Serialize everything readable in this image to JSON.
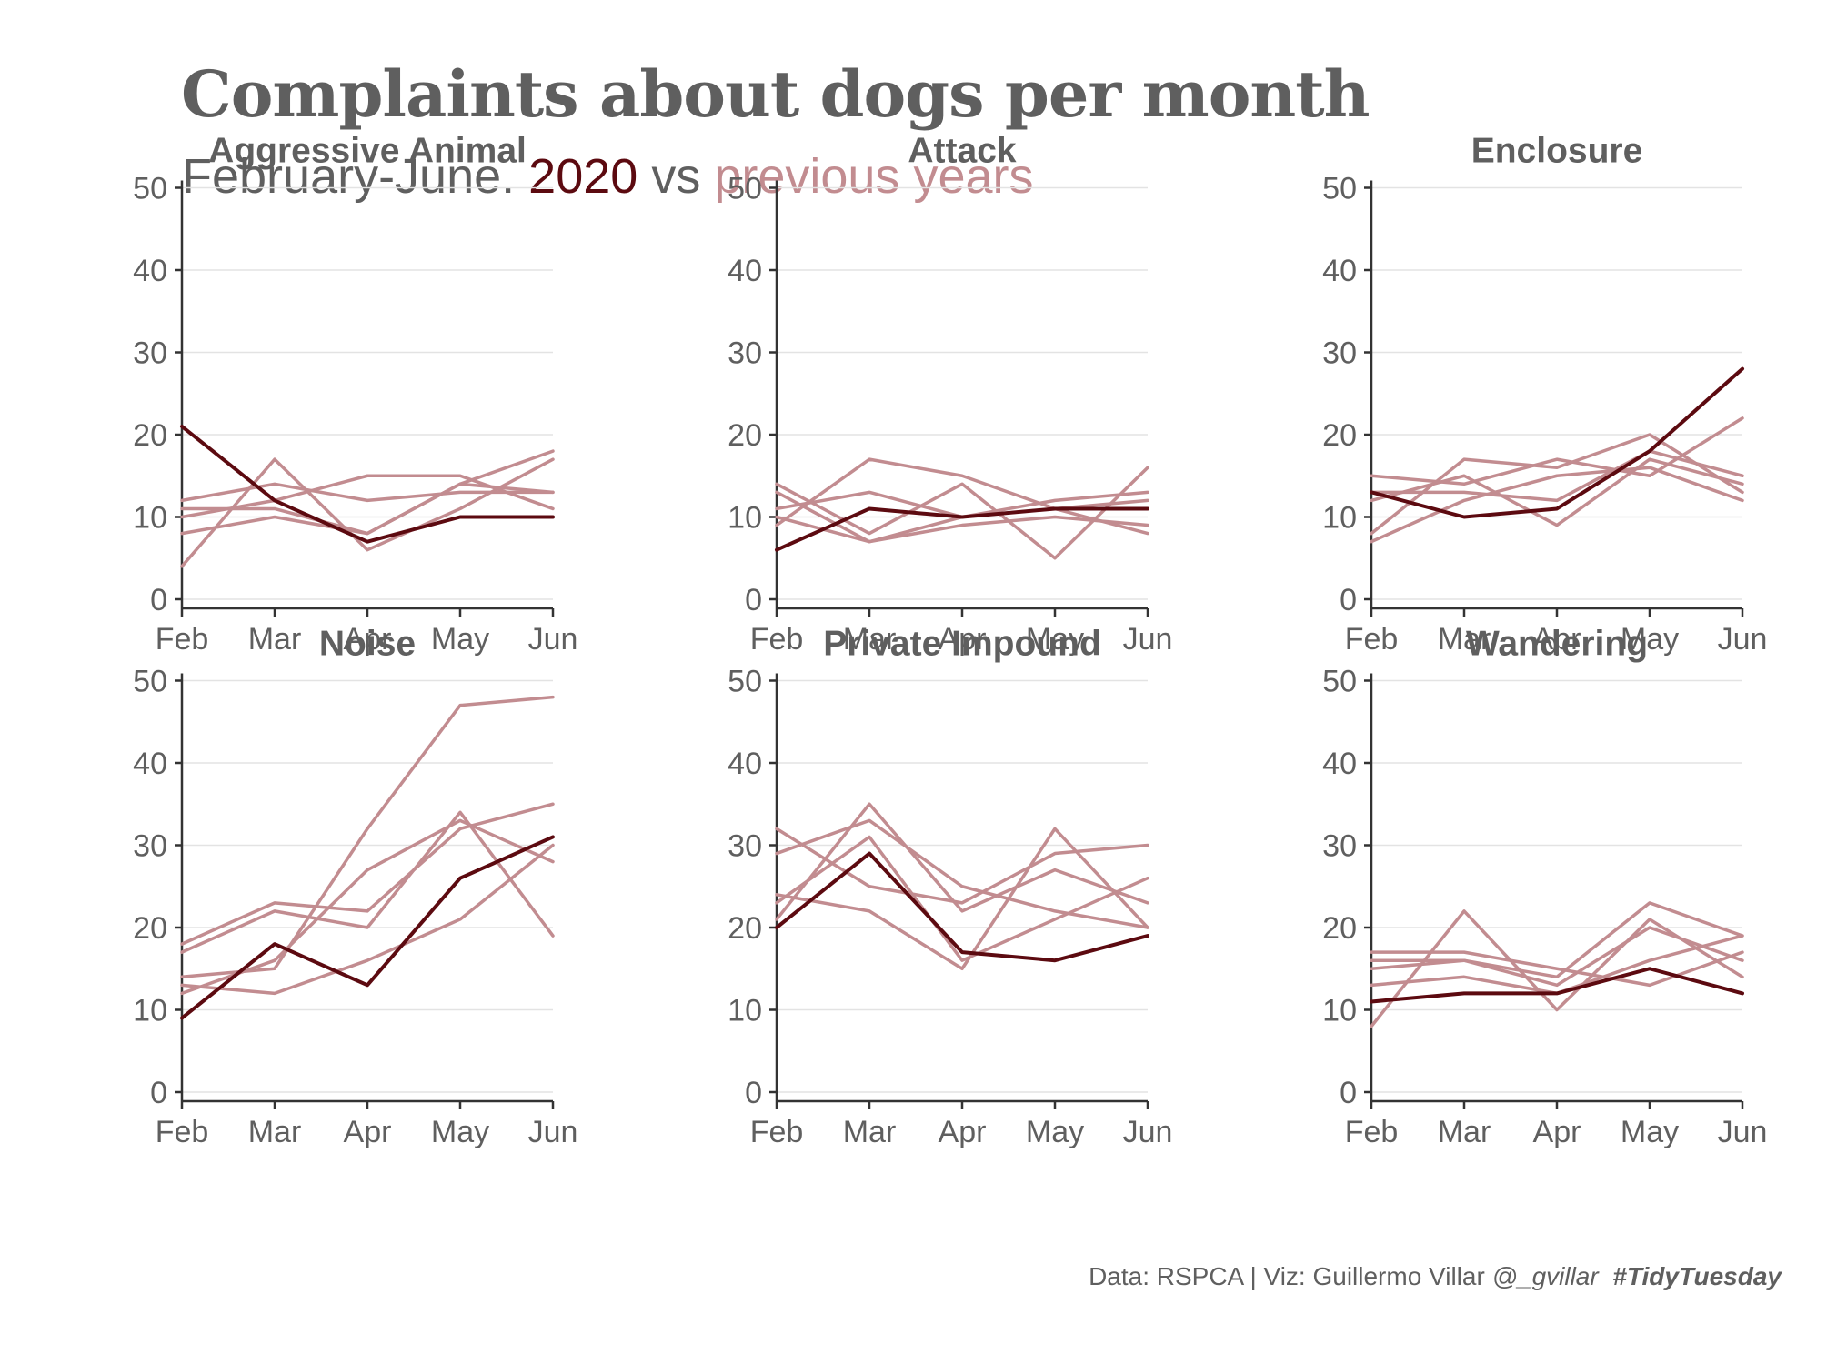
{
  "title": "Complaints about dogs per month",
  "subtitle": {
    "lead": "February-June. ",
    "current": "2020",
    "mid": " vs ",
    "previous": "previous years"
  },
  "caption": {
    "text": "Data: RSPCA | Viz: Guillermo Villar ",
    "handle": "@_gvillar",
    "tag": "#TidyTuesday"
  },
  "colors": {
    "text": "#5f5f5f",
    "current": "#5c0a10",
    "previous": "#c28c90",
    "grid": "#e3e3e3"
  },
  "chart_data": [
    {
      "type": "line",
      "title": "Aggressive Animal",
      "x": [
        "Feb",
        "Mar",
        "Apr",
        "May",
        "Jun"
      ],
      "ylim": [
        0,
        50
      ],
      "yticks": [
        0,
        10,
        20,
        30,
        40,
        50
      ],
      "previous_years": [
        [
          12,
          14,
          12,
          13,
          13
        ],
        [
          10,
          12,
          15,
          15,
          11
        ],
        [
          8,
          10,
          8,
          14,
          18
        ],
        [
          4,
          17,
          6,
          11,
          17
        ],
        [
          11,
          11,
          8,
          14,
          13
        ]
      ],
      "current": [
        21,
        12,
        7,
        10,
        10
      ]
    },
    {
      "type": "line",
      "title": "Attack",
      "x": [
        "Feb",
        "Mar",
        "Apr",
        "May",
        "Jun"
      ],
      "ylim": [
        0,
        50
      ],
      "yticks": [
        0,
        10,
        20,
        30,
        40,
        50
      ],
      "previous_years": [
        [
          9,
          17,
          15,
          11,
          12
        ],
        [
          14,
          8,
          14,
          5,
          16
        ],
        [
          11,
          13,
          10,
          11,
          8
        ],
        [
          10,
          7,
          9,
          10,
          9
        ],
        [
          13,
          7,
          10,
          12,
          13
        ]
      ],
      "current": [
        6,
        11,
        10,
        11,
        11
      ]
    },
    {
      "type": "line",
      "title": "Enclosure",
      "x": [
        "Feb",
        "Mar",
        "Apr",
        "May",
        "Jun"
      ],
      "ylim": [
        0,
        50
      ],
      "yticks": [
        0,
        10,
        20,
        30,
        40,
        50
      ],
      "previous_years": [
        [
          15,
          14,
          17,
          15,
          22
        ],
        [
          8,
          17,
          16,
          20,
          13
        ],
        [
          7,
          12,
          15,
          16,
          12
        ],
        [
          12,
          15,
          9,
          17,
          14
        ],
        [
          13,
          13,
          12,
          18,
          15
        ]
      ],
      "current": [
        13,
        10,
        11,
        18,
        28
      ]
    },
    {
      "type": "line",
      "title": "Noise",
      "x": [
        "Feb",
        "Mar",
        "Apr",
        "May",
        "Jun"
      ],
      "ylim": [
        0,
        50
      ],
      "yticks": [
        0,
        10,
        20,
        30,
        40,
        50
      ],
      "previous_years": [
        [
          14,
          15,
          32,
          47,
          48
        ],
        [
          18,
          23,
          22,
          32,
          35
        ],
        [
          17,
          22,
          20,
          34,
          19
        ],
        [
          13,
          12,
          16,
          21,
          30
        ],
        [
          12,
          16,
          27,
          33,
          28
        ]
      ],
      "current": [
        9,
        18,
        13,
        26,
        31
      ]
    },
    {
      "type": "line",
      "title": "Private Impound",
      "x": [
        "Feb",
        "Mar",
        "Apr",
        "May",
        "Jun"
      ],
      "ylim": [
        0,
        50
      ],
      "yticks": [
        0,
        10,
        20,
        30,
        40,
        50
      ],
      "previous_years": [
        [
          32,
          25,
          23,
          29,
          30
        ],
        [
          24,
          22,
          15,
          32,
          20
        ],
        [
          21,
          35,
          22,
          27,
          23
        ],
        [
          29,
          33,
          25,
          22,
          20
        ],
        [
          23,
          31,
          16,
          21,
          26
        ]
      ],
      "current": [
        20,
        29,
        17,
        16,
        19
      ]
    },
    {
      "type": "line",
      "title": "Wandering",
      "x": [
        "Feb",
        "Mar",
        "Apr",
        "May",
        "Jun"
      ],
      "ylim": [
        0,
        50
      ],
      "yticks": [
        0,
        10,
        20,
        30,
        40,
        50
      ],
      "previous_years": [
        [
          17,
          17,
          15,
          13,
          17
        ],
        [
          8,
          22,
          10,
          21,
          14
        ],
        [
          15,
          16,
          14,
          23,
          19
        ],
        [
          16,
          16,
          13,
          20,
          16
        ],
        [
          13,
          14,
          12,
          16,
          19
        ]
      ],
      "current": [
        11,
        12,
        12,
        15,
        12
      ]
    }
  ]
}
